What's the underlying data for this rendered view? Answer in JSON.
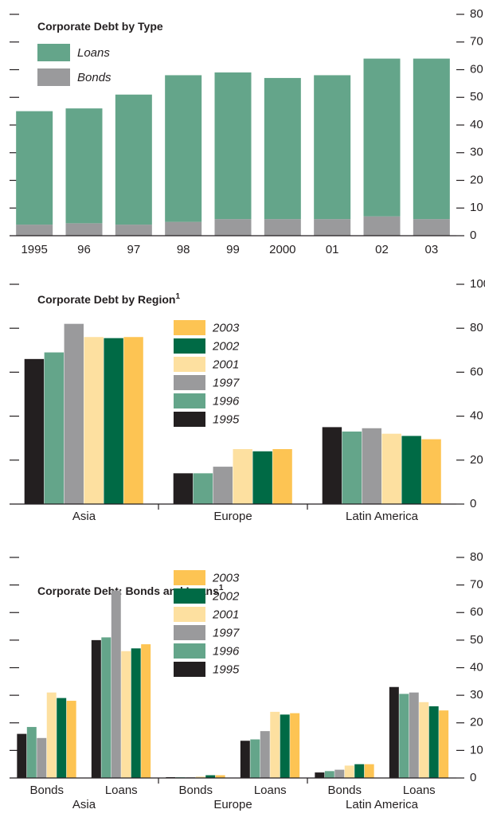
{
  "chart_data": [
    {
      "type": "stacked_bar",
      "title": "Corporate Debt by Type",
      "categories": [
        "1995",
        "96",
        "97",
        "98",
        "99",
        "2000",
        "01",
        "02",
        "03"
      ],
      "series": [
        {
          "name": "Bonds",
          "color": "#9a9a9c",
          "values": [
            4,
            4.5,
            4,
            5,
            6,
            6,
            6,
            7,
            6
          ]
        },
        {
          "name": "Loans",
          "color": "#64a58a",
          "values": [
            41,
            41.5,
            47,
            53,
            53,
            51,
            52,
            57,
            58
          ]
        }
      ],
      "ylim": [
        0,
        80
      ],
      "yticks": [
        0,
        10,
        20,
        30,
        40,
        50,
        60,
        70,
        80
      ]
    },
    {
      "type": "grouped_bar",
      "title": "Corporate Debt by Region",
      "title_note": "1",
      "categories": [
        "Asia",
        "Europe",
        "Latin America"
      ],
      "series": [
        {
          "name": "1995",
          "color": "#231f20",
          "values": [
            66,
            14,
            35
          ]
        },
        {
          "name": "1996",
          "color": "#64a58a",
          "values": [
            69,
            14,
            33
          ]
        },
        {
          "name": "1997",
          "color": "#9a9a9c",
          "values": [
            82,
            17,
            34.5
          ]
        },
        {
          "name": "2001",
          "color": "#fde0a0",
          "values": [
            76,
            25,
            32
          ]
        },
        {
          "name": "2002",
          "color": "#006a45",
          "values": [
            75.5,
            24,
            31
          ]
        },
        {
          "name": "2003",
          "color": "#fdc453",
          "values": [
            76,
            25,
            29.5
          ]
        }
      ],
      "ylim": [
        0,
        100
      ],
      "yticks": [
        0,
        20,
        40,
        60,
        80,
        100
      ]
    },
    {
      "type": "grouped_bar",
      "title": "Corporate Debt: Bonds and Loans",
      "title_note": "1",
      "categories": [
        "Bonds",
        "Loans",
        "Bonds",
        "Loans",
        "Bonds",
        "Loans"
      ],
      "groups": [
        "Asia",
        "Europe",
        "Latin America"
      ],
      "series": [
        {
          "name": "1995",
          "color": "#231f20",
          "values": [
            16,
            50,
            0.3,
            13.5,
            2,
            33
          ]
        },
        {
          "name": "1996",
          "color": "#64a58a",
          "values": [
            18.5,
            51,
            0.3,
            14,
            2.5,
            30.5
          ]
        },
        {
          "name": "1997",
          "color": "#9a9a9c",
          "values": [
            14.5,
            68,
            0.3,
            17,
            3,
            31
          ]
        },
        {
          "name": "2001",
          "color": "#fde0a0",
          "values": [
            31,
            46,
            0.5,
            24,
            4.5,
            27.5
          ]
        },
        {
          "name": "2002",
          "color": "#006a45",
          "values": [
            29,
            47,
            1,
            23,
            5,
            26
          ]
        },
        {
          "name": "2003",
          "color": "#fdc453",
          "values": [
            28,
            48.5,
            1,
            23.5,
            5,
            24.5
          ]
        }
      ],
      "ylim": [
        0,
        80
      ],
      "yticks": [
        0,
        10,
        20,
        30,
        40,
        50,
        60,
        70,
        80
      ]
    }
  ]
}
